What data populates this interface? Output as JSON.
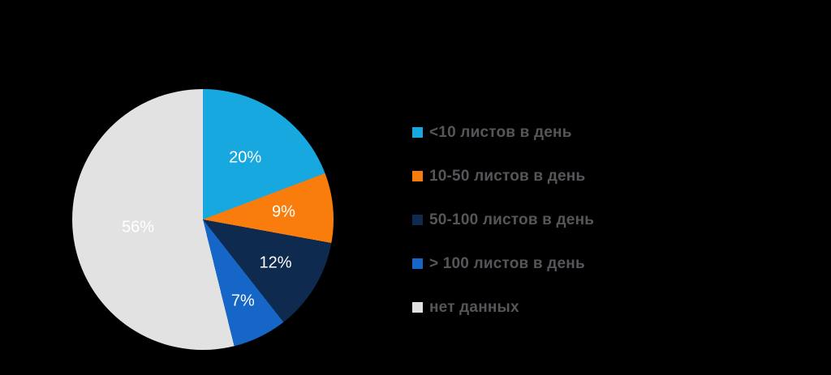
{
  "background_color": "#000000",
  "chart_data": {
    "type": "pie",
    "direction": "clockwise",
    "start_angle_deg": 0,
    "legend_position": "right",
    "slice_label_color": "#FFFFFF",
    "legend_text_color": "#55565A",
    "values_sum": 104,
    "slices": [
      {
        "label": "<10 листов в день",
        "value": 20,
        "display": "20%",
        "color": "#18A8E0"
      },
      {
        "label": "10-50 листов в день",
        "value": 9,
        "display": "9%",
        "color": "#F97D0D"
      },
      {
        "label": "50-100 листов в день",
        "value": 12,
        "display": "12%",
        "color": "#0E2A4E"
      },
      {
        "label": "> 100 листов в день",
        "value": 7,
        "display": "7%",
        "color": "#1566C6"
      },
      {
        "label": "нет данных",
        "value": 56,
        "display": "56%",
        "color": "#E2E2E2"
      }
    ]
  }
}
